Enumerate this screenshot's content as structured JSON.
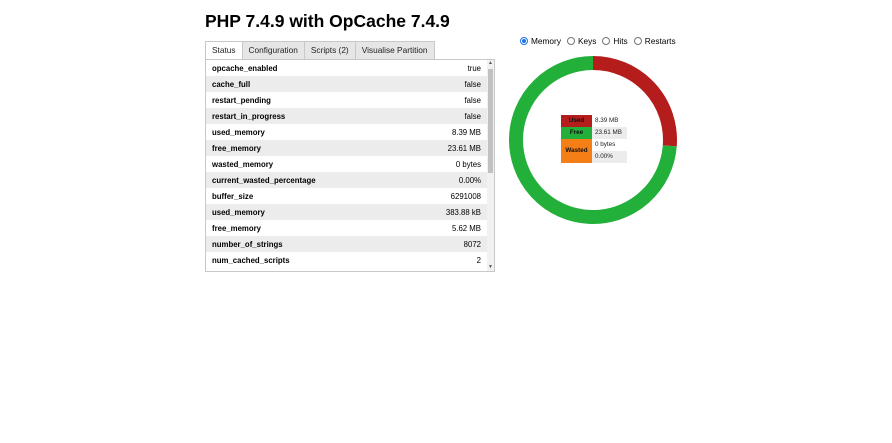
{
  "title": "PHP 7.4.9 with OpCache 7.4.9",
  "tabs": [
    {
      "label": "Status"
    },
    {
      "label": "Configuration"
    },
    {
      "label": "Scripts (2)"
    },
    {
      "label": "Visualise Partition"
    }
  ],
  "status_rows": [
    {
      "key": "opcache_enabled",
      "value": "true"
    },
    {
      "key": "cache_full",
      "value": "false"
    },
    {
      "key": "restart_pending",
      "value": "false"
    },
    {
      "key": "restart_in_progress",
      "value": "false"
    },
    {
      "key": "used_memory",
      "value": "8.39 MB"
    },
    {
      "key": "free_memory",
      "value": "23.61 MB"
    },
    {
      "key": "wasted_memory",
      "value": "0 bytes"
    },
    {
      "key": "current_wasted_percentage",
      "value": "0.00%"
    },
    {
      "key": "buffer_size",
      "value": "6291008"
    },
    {
      "key": "used_memory",
      "value": "383.88 kB"
    },
    {
      "key": "free_memory",
      "value": "5.62 MB"
    },
    {
      "key": "number_of_strings",
      "value": "8072"
    },
    {
      "key": "num_cached_scripts",
      "value": "2"
    }
  ],
  "radios": [
    {
      "label": "Memory",
      "checked": true
    },
    {
      "label": "Keys",
      "checked": false
    },
    {
      "label": "Hits",
      "checked": false
    },
    {
      "label": "Restarts",
      "checked": false
    }
  ],
  "legend": {
    "used_label": "Used",
    "used_value": "8.39 MB",
    "free_label": "Free",
    "free_value": "23.61 MB",
    "wasted_label": "Wasted",
    "wasted_value": "0 bytes",
    "wasted_pct": "0.00%"
  },
  "colors": {
    "used": "#b51c1c",
    "free": "#22b03a",
    "wasted": "#f57f17"
  },
  "chart_data": {
    "type": "pie",
    "series": [
      {
        "name": "Used",
        "value": 8.39
      },
      {
        "name": "Free",
        "value": 23.61
      },
      {
        "name": "Wasted",
        "value": 0
      }
    ]
  }
}
